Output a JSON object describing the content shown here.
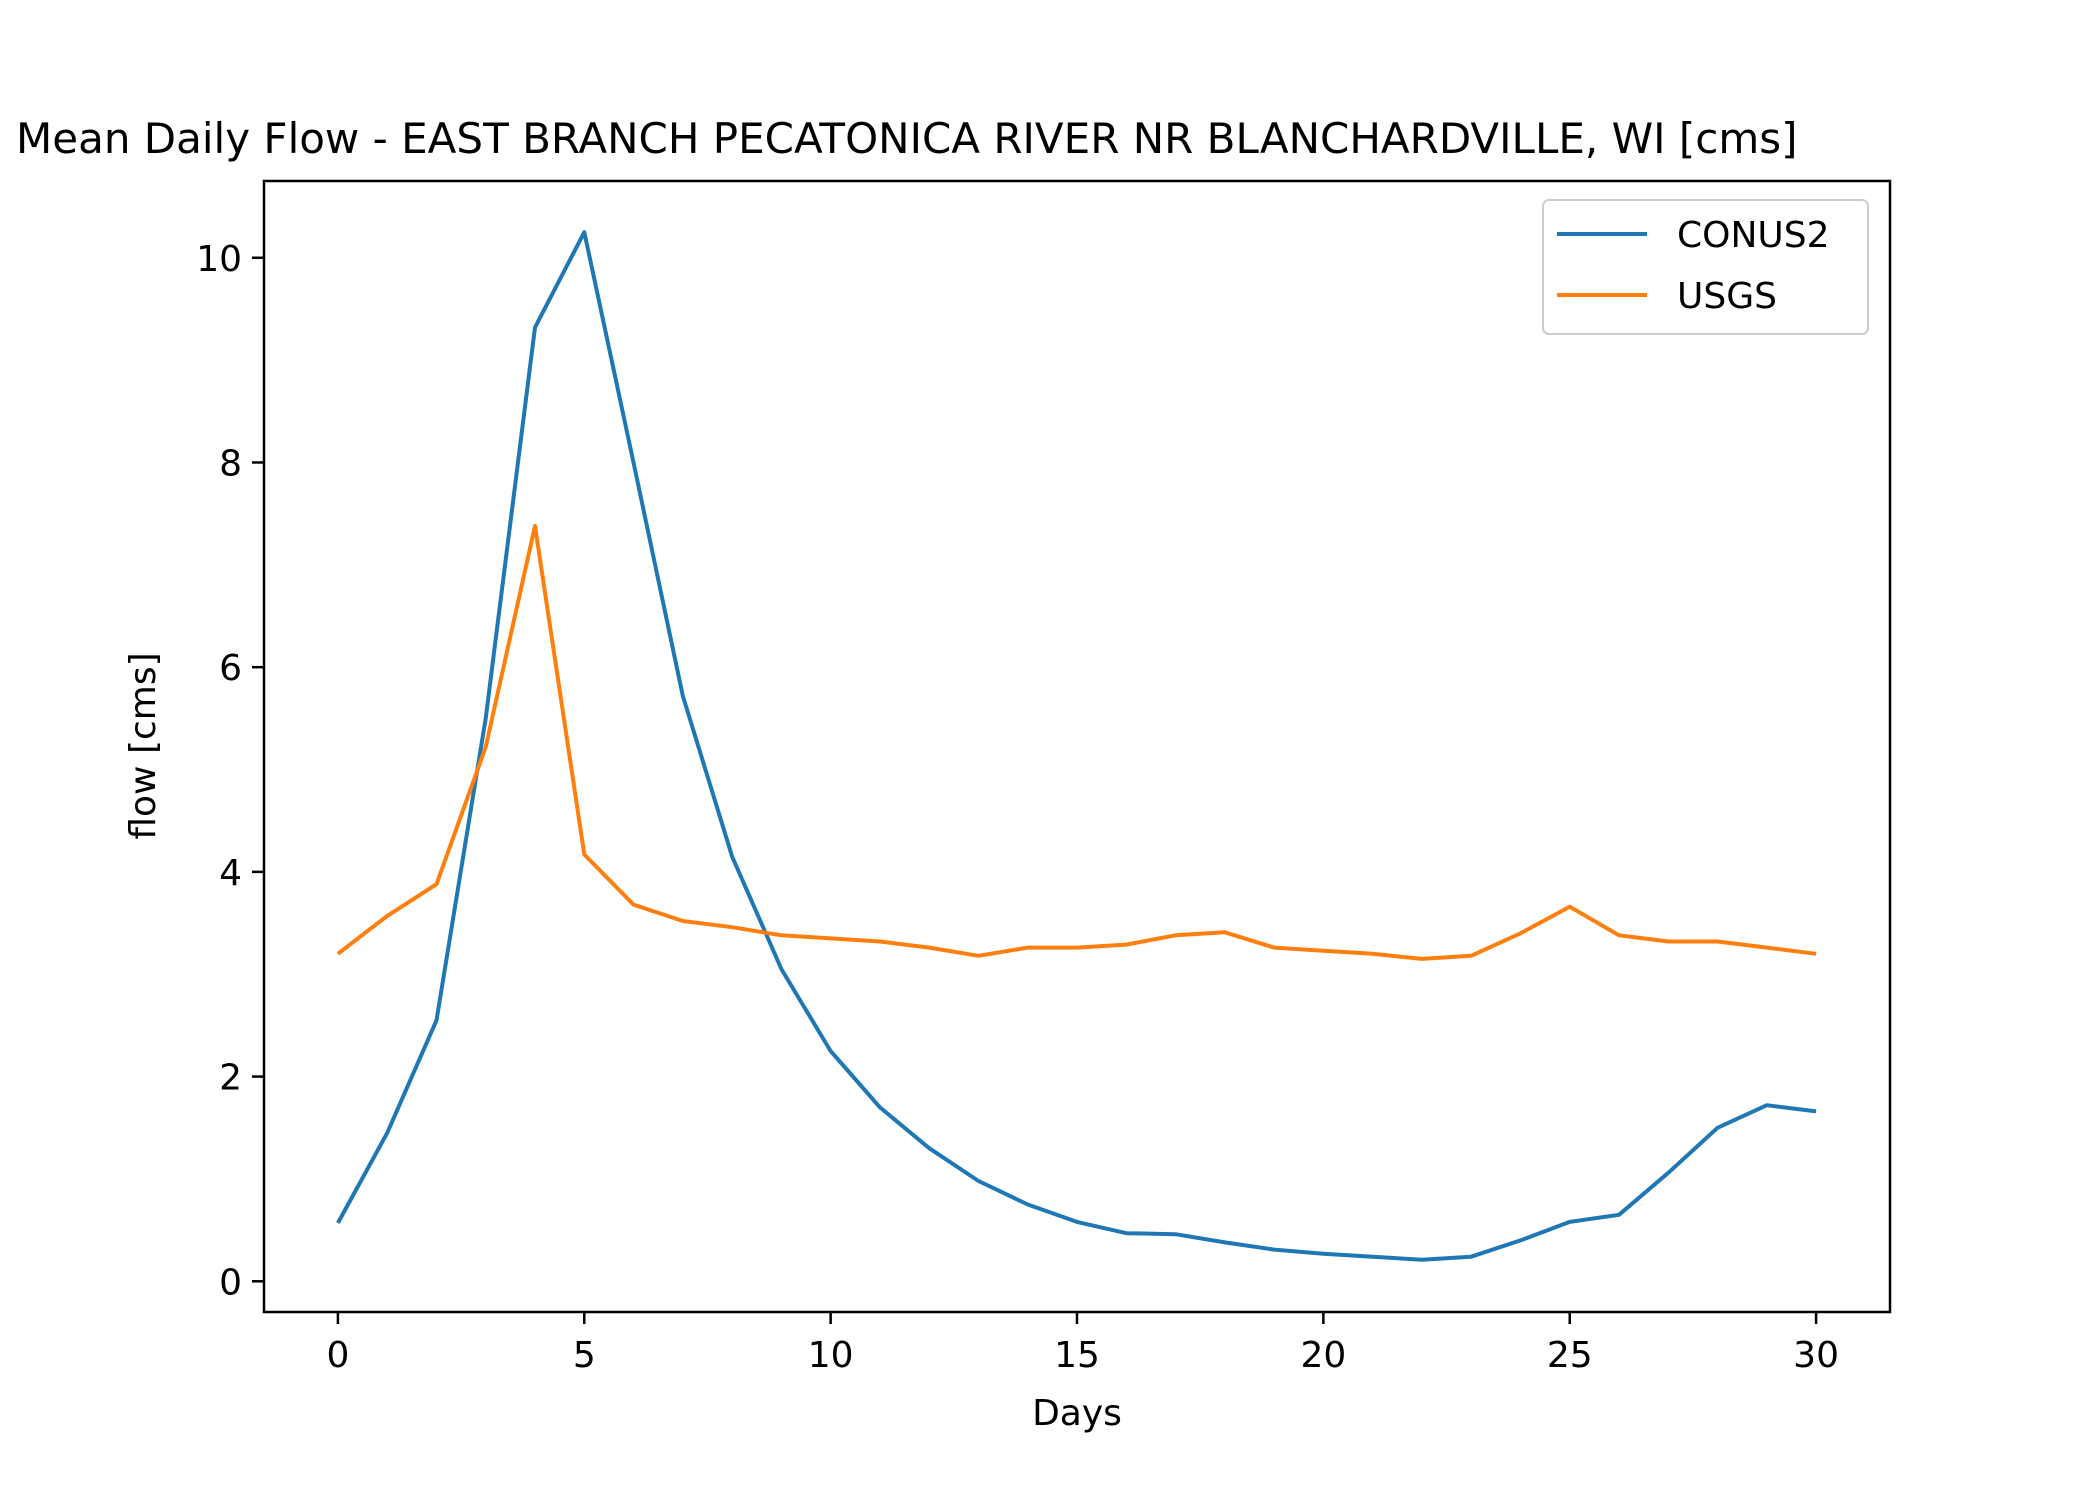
{
  "chart_data": {
    "type": "line",
    "title": "Mean Daily Flow - EAST BRANCH PECATONICA RIVER NR BLANCHARDVILLE, WI [cms]",
    "xlabel": "Days",
    "ylabel": "flow [cms]",
    "xlim": [
      -1.5,
      31.5
    ],
    "ylim": [
      -0.3,
      10.75
    ],
    "xticks": [
      0,
      5,
      10,
      15,
      20,
      25,
      30
    ],
    "yticks": [
      0,
      2,
      4,
      6,
      8,
      10
    ],
    "grid": false,
    "legend_position": "top-right",
    "x": [
      0,
      1,
      2,
      3,
      4,
      5,
      6,
      7,
      8,
      9,
      10,
      11,
      12,
      13,
      14,
      15,
      16,
      17,
      18,
      19,
      20,
      21,
      22,
      23,
      24,
      25,
      26,
      27,
      28,
      29,
      30
    ],
    "series": [
      {
        "name": "CONUS2",
        "color": "#1f77b4",
        "values": [
          0.57,
          1.45,
          2.55,
          5.5,
          9.32,
          10.25,
          8.0,
          5.72,
          4.15,
          3.05,
          2.25,
          1.7,
          1.3,
          0.98,
          0.75,
          0.58,
          0.47,
          0.46,
          0.38,
          0.31,
          0.27,
          0.24,
          0.21,
          0.24,
          0.4,
          0.58,
          0.65,
          1.06,
          1.5,
          1.72,
          1.66
        ]
      },
      {
        "name": "USGS",
        "color": "#ff7f0e",
        "values": [
          3.2,
          3.57,
          3.88,
          5.22,
          7.38,
          4.17,
          3.68,
          3.52,
          3.46,
          3.38,
          3.35,
          3.32,
          3.26,
          3.18,
          3.26,
          3.26,
          3.29,
          3.38,
          3.41,
          3.26,
          3.23,
          3.2,
          3.15,
          3.18,
          3.4,
          3.66,
          3.38,
          3.32,
          3.32,
          3.26,
          3.2
        ]
      }
    ]
  }
}
